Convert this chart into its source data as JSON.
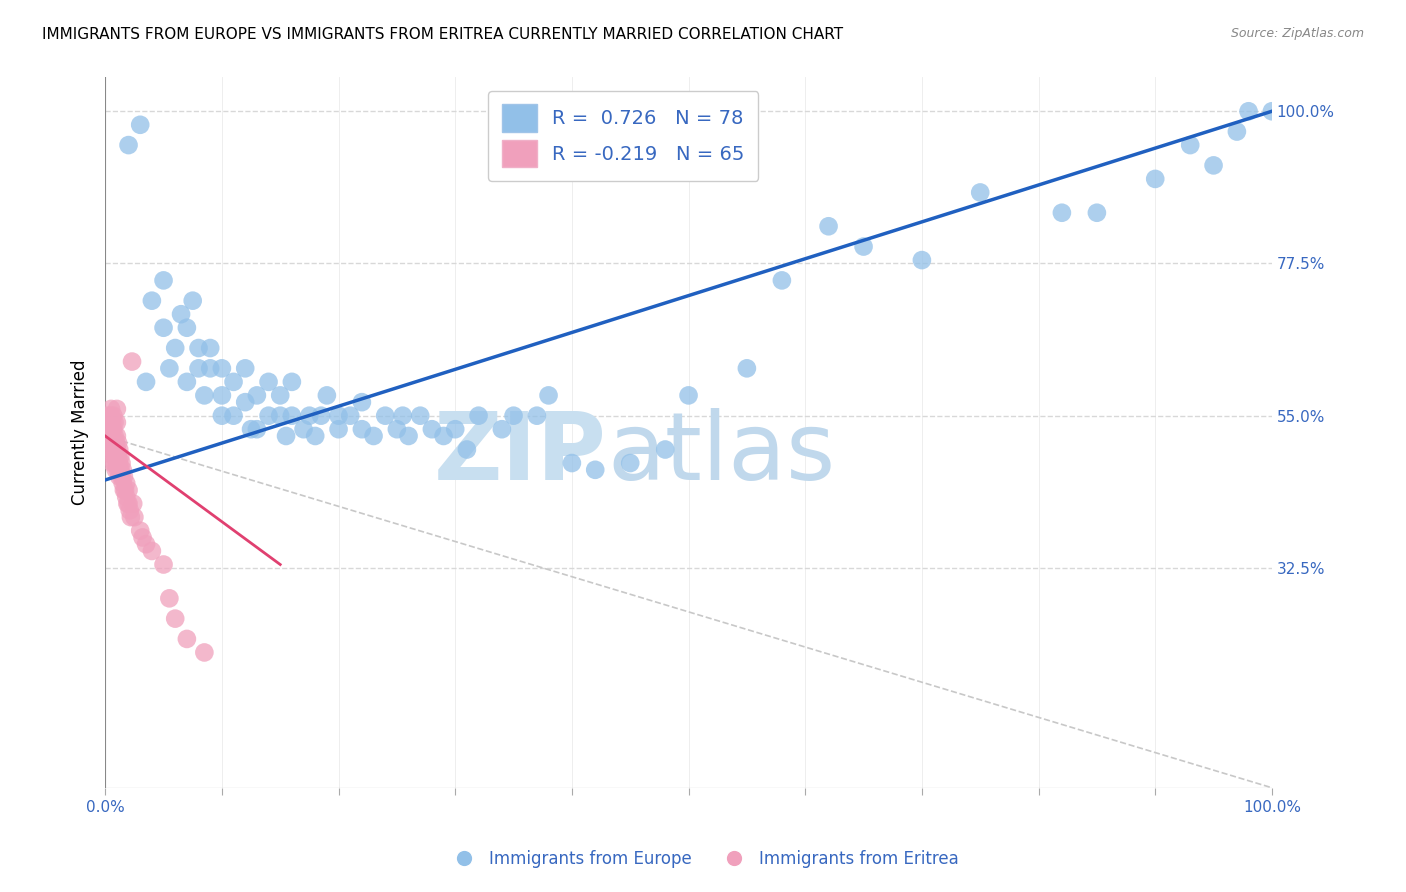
{
  "title": "IMMIGRANTS FROM EUROPE VS IMMIGRANTS FROM ERITREA CURRENTLY MARRIED CORRELATION CHART",
  "source": "Source: ZipAtlas.com",
  "ylabel": "Currently Married",
  "ytick_labels": [
    "32.5%",
    "55.0%",
    "77.5%",
    "100.0%"
  ],
  "ytick_values": [
    0.325,
    0.55,
    0.775,
    1.0
  ],
  "legend_label_blue": "Immigrants from Europe",
  "legend_label_pink": "Immigrants from Eritrea",
  "legend_R_blue": "R =  0.726",
  "legend_N_blue": "N = 78",
  "legend_R_pink": "R = -0.219",
  "legend_N_pink": "N = 65",
  "blue_color": "#92c0e8",
  "pink_color": "#f0a0bc",
  "blue_line_color": "#2060c0",
  "pink_line_color": "#e04070",
  "diag_color": "#c8c8c8",
  "watermark_text": "ZIPatlas",
  "watermark_color": "#d8eaf8",
  "background_color": "#ffffff",
  "title_fontsize": 11,
  "axis_label_color": "#3868c0",
  "grid_color": "#d8d8d8",
  "xmin": 0.0,
  "xmax": 1.0,
  "ymin": 0.0,
  "ymax": 1.05,
  "blue_scatter_x": [
    0.02,
    0.03,
    0.035,
    0.04,
    0.05,
    0.05,
    0.055,
    0.06,
    0.065,
    0.07,
    0.07,
    0.075,
    0.08,
    0.08,
    0.085,
    0.09,
    0.09,
    0.1,
    0.1,
    0.1,
    0.11,
    0.11,
    0.12,
    0.12,
    0.125,
    0.13,
    0.13,
    0.14,
    0.14,
    0.15,
    0.15,
    0.155,
    0.16,
    0.16,
    0.17,
    0.175,
    0.18,
    0.185,
    0.19,
    0.2,
    0.2,
    0.21,
    0.22,
    0.22,
    0.23,
    0.24,
    0.25,
    0.255,
    0.26,
    0.27,
    0.28,
    0.29,
    0.3,
    0.31,
    0.32,
    0.34,
    0.35,
    0.37,
    0.38,
    0.4,
    0.42,
    0.45,
    0.48,
    0.5,
    0.55,
    0.58,
    0.62,
    0.65,
    0.7,
    0.75,
    0.82,
    0.85,
    0.9,
    0.93,
    0.95,
    0.97,
    0.98,
    1.0
  ],
  "blue_scatter_y": [
    0.95,
    0.98,
    0.6,
    0.72,
    0.68,
    0.75,
    0.62,
    0.65,
    0.7,
    0.6,
    0.68,
    0.72,
    0.62,
    0.65,
    0.58,
    0.65,
    0.62,
    0.58,
    0.62,
    0.55,
    0.6,
    0.55,
    0.62,
    0.57,
    0.53,
    0.58,
    0.53,
    0.6,
    0.55,
    0.55,
    0.58,
    0.52,
    0.55,
    0.6,
    0.53,
    0.55,
    0.52,
    0.55,
    0.58,
    0.53,
    0.55,
    0.55,
    0.53,
    0.57,
    0.52,
    0.55,
    0.53,
    0.55,
    0.52,
    0.55,
    0.53,
    0.52,
    0.53,
    0.5,
    0.55,
    0.53,
    0.55,
    0.55,
    0.58,
    0.48,
    0.47,
    0.48,
    0.5,
    0.58,
    0.62,
    0.75,
    0.83,
    0.8,
    0.78,
    0.88,
    0.85,
    0.85,
    0.9,
    0.95,
    0.92,
    0.97,
    1.0,
    1.0
  ],
  "pink_scatter_x": [
    0.002,
    0.002,
    0.003,
    0.003,
    0.004,
    0.004,
    0.004,
    0.005,
    0.005,
    0.005,
    0.005,
    0.006,
    0.006,
    0.006,
    0.006,
    0.007,
    0.007,
    0.007,
    0.007,
    0.008,
    0.008,
    0.008,
    0.008,
    0.009,
    0.009,
    0.009,
    0.01,
    0.01,
    0.01,
    0.01,
    0.01,
    0.011,
    0.011,
    0.011,
    0.012,
    0.012,
    0.012,
    0.013,
    0.013,
    0.014,
    0.014,
    0.015,
    0.015,
    0.016,
    0.016,
    0.017,
    0.018,
    0.018,
    0.019,
    0.02,
    0.02,
    0.021,
    0.022,
    0.023,
    0.024,
    0.025,
    0.03,
    0.032,
    0.035,
    0.04,
    0.05,
    0.055,
    0.06,
    0.07,
    0.085
  ],
  "pink_scatter_y": [
    0.53,
    0.55,
    0.52,
    0.54,
    0.5,
    0.52,
    0.54,
    0.51,
    0.53,
    0.55,
    0.56,
    0.48,
    0.5,
    0.52,
    0.54,
    0.49,
    0.51,
    0.53,
    0.55,
    0.48,
    0.5,
    0.52,
    0.54,
    0.47,
    0.49,
    0.51,
    0.48,
    0.5,
    0.52,
    0.54,
    0.56,
    0.47,
    0.49,
    0.51,
    0.46,
    0.48,
    0.5,
    0.47,
    0.49,
    0.46,
    0.48,
    0.45,
    0.47,
    0.44,
    0.46,
    0.44,
    0.43,
    0.45,
    0.42,
    0.42,
    0.44,
    0.41,
    0.4,
    0.63,
    0.42,
    0.4,
    0.38,
    0.37,
    0.36,
    0.35,
    0.33,
    0.28,
    0.25,
    0.22,
    0.2
  ],
  "blue_line_x0": 0.0,
  "blue_line_y0": 0.455,
  "blue_line_x1": 1.0,
  "blue_line_y1": 1.0,
  "pink_line_x0": 0.0,
  "pink_line_y0": 0.52,
  "pink_line_x1": 0.15,
  "pink_line_y1": 0.33,
  "diag_line_x0": 0.0,
  "diag_line_y0": 0.52,
  "diag_line_x1": 1.0,
  "diag_line_y1": 0.0
}
